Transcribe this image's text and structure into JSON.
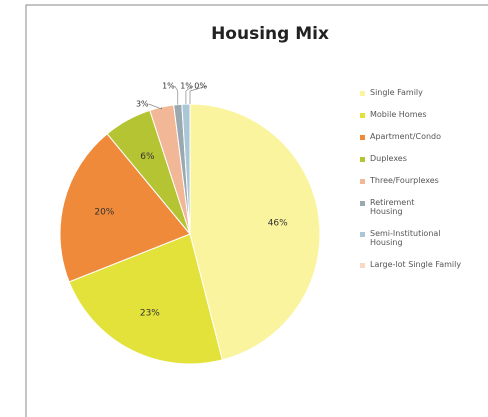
{
  "chart_data": {
    "type": "pie",
    "title": "Housing Mix",
    "categories": [
      "Single Family",
      "Mobile Homes",
      "Apartment/Condo",
      "Duplexes",
      "Three/Fourplexes",
      "Retirement Housing",
      "Semi-Institutional Housing",
      "Large-lot Single Family"
    ],
    "values": [
      46,
      23,
      20,
      6,
      3,
      1,
      1,
      0
    ],
    "value_labels": [
      "46%",
      "23%",
      "20%",
      "6%",
      "3%",
      "1%",
      "1%",
      "0%"
    ],
    "colors": [
      "#fbf49e",
      "#e3e23a",
      "#ef8a3a",
      "#b5c433",
      "#f2b796",
      "#9aa8b0",
      "#a9c7d6",
      "#f7d9c4"
    ],
    "legend": "right"
  }
}
